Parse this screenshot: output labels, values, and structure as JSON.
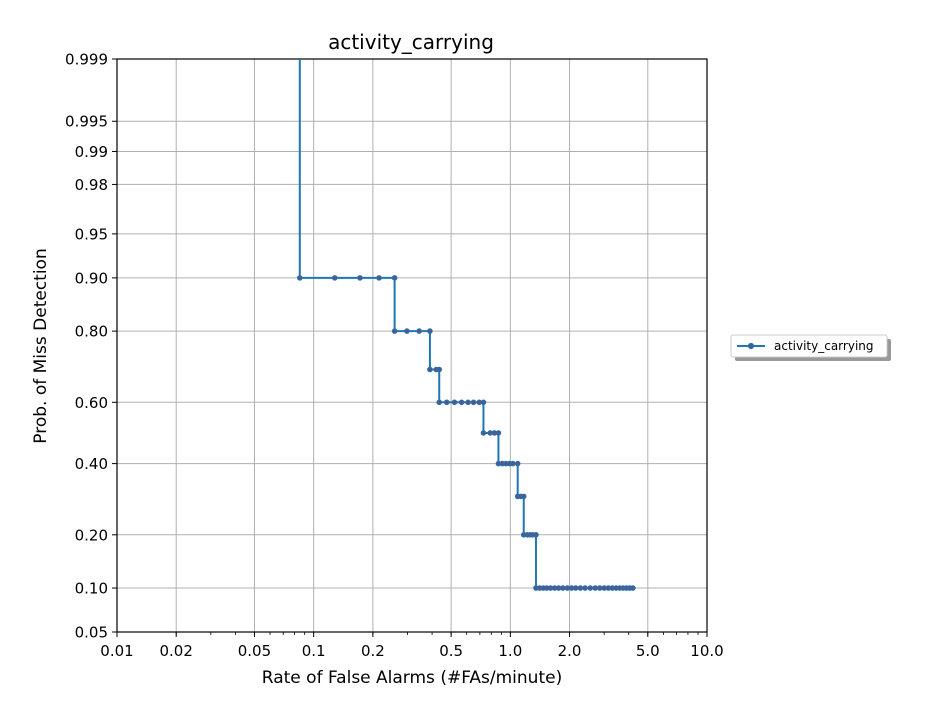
{
  "chart_data": {
    "type": "line",
    "title": "activity_carrying",
    "xlabel": "Rate of False Alarms (#FAs/minute)",
    "ylabel": "Prob. of Miss Detection",
    "x_scale": "log",
    "y_scale": "normal-deviate",
    "xlim": [
      0.01,
      10.0
    ],
    "ylim": [
      0.05,
      0.999
    ],
    "grid": true,
    "legend_position": "right",
    "xticks": [
      {
        "value": 0.01,
        "label": "0.01"
      },
      {
        "value": 0.02,
        "label": "0.02"
      },
      {
        "value": 0.05,
        "label": "0.05"
      },
      {
        "value": 0.1,
        "label": "0.1"
      },
      {
        "value": 0.2,
        "label": "0.2"
      },
      {
        "value": 0.5,
        "label": "0.5"
      },
      {
        "value": 1.0,
        "label": "1.0"
      },
      {
        "value": 2.0,
        "label": "2.0"
      },
      {
        "value": 5.0,
        "label": "5.0"
      },
      {
        "value": 10.0,
        "label": "10.0"
      }
    ],
    "yticks": [
      {
        "value": 0.05,
        "label": "0.05"
      },
      {
        "value": 0.1,
        "label": "0.10"
      },
      {
        "value": 0.2,
        "label": "0.20"
      },
      {
        "value": 0.4,
        "label": "0.40"
      },
      {
        "value": 0.6,
        "label": "0.60"
      },
      {
        "value": 0.8,
        "label": "0.80"
      },
      {
        "value": 0.9,
        "label": "0.90"
      },
      {
        "value": 0.95,
        "label": "0.95"
      },
      {
        "value": 0.98,
        "label": "0.98"
      },
      {
        "value": 0.99,
        "label": "0.99"
      },
      {
        "value": 0.995,
        "label": "0.995"
      },
      {
        "value": 0.999,
        "label": "0.999"
      }
    ],
    "series": [
      {
        "name": "activity_carrying",
        "color": "#1f77b4",
        "marker_color": "#4f5b8f",
        "x": [
          0.085,
          0.085,
          0.128,
          0.172,
          0.215,
          0.258,
          0.258,
          0.298,
          0.344,
          0.39,
          0.39,
          0.42,
          0.435,
          0.435,
          0.475,
          0.52,
          0.565,
          0.61,
          0.65,
          0.695,
          0.73,
          0.73,
          0.79,
          0.83,
          0.87,
          0.87,
          0.91,
          0.95,
          0.99,
          1.03,
          1.09,
          1.09,
          1.13,
          1.17,
          1.17,
          1.22,
          1.26,
          1.3,
          1.35,
          1.35,
          1.41,
          1.47,
          1.53,
          1.6,
          1.68,
          1.76,
          1.85,
          1.95,
          2.05,
          2.15,
          2.27,
          2.4,
          2.55,
          2.7,
          2.85,
          3.0,
          3.15,
          3.3,
          3.45,
          3.6,
          3.75,
          3.9,
          4.05,
          4.2
        ],
        "y": [
          0.999,
          0.9,
          0.9,
          0.9,
          0.9,
          0.9,
          0.8,
          0.8,
          0.8,
          0.8,
          0.7,
          0.7,
          0.7,
          0.6,
          0.6,
          0.6,
          0.6,
          0.6,
          0.6,
          0.6,
          0.6,
          0.5,
          0.5,
          0.5,
          0.5,
          0.4,
          0.4,
          0.4,
          0.4,
          0.4,
          0.4,
          0.3,
          0.3,
          0.3,
          0.2,
          0.2,
          0.2,
          0.2,
          0.2,
          0.1,
          0.1,
          0.1,
          0.1,
          0.1,
          0.1,
          0.1,
          0.1,
          0.1,
          0.1,
          0.1,
          0.1,
          0.1,
          0.1,
          0.1,
          0.1,
          0.1,
          0.1,
          0.1,
          0.1,
          0.1,
          0.1,
          0.1,
          0.1,
          0.1
        ],
        "markers": [
          false,
          true,
          true,
          true,
          true,
          true,
          true,
          true,
          true,
          true,
          true,
          true,
          true,
          true,
          true,
          true,
          true,
          true,
          true,
          true,
          true,
          true,
          true,
          true,
          true,
          true,
          true,
          true,
          true,
          true,
          true,
          true,
          true,
          true,
          true,
          true,
          true,
          true,
          true,
          true,
          true,
          true,
          true,
          true,
          true,
          true,
          true,
          true,
          true,
          true,
          true,
          true,
          true,
          true,
          true,
          true,
          true,
          true,
          true,
          true,
          true,
          true,
          true,
          true
        ]
      }
    ]
  }
}
